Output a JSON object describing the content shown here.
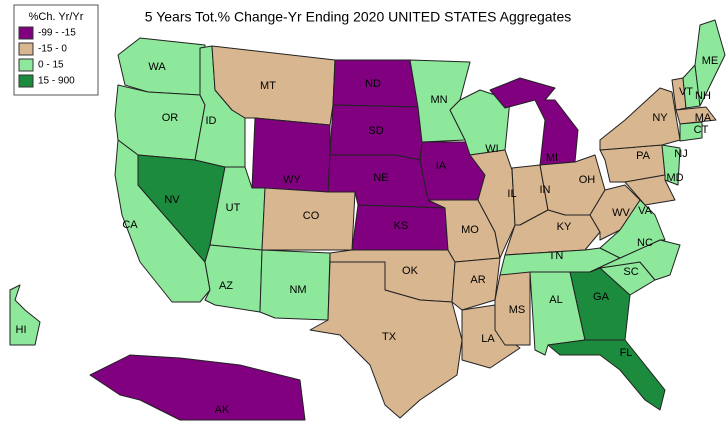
{
  "title": "5 Years Tot.% Change-Yr Ending 2020 UNITED STATES Aggregates",
  "legend": {
    "title": "%Ch. Yr/Yr",
    "items": [
      {
        "label": "-99 - -15",
        "color": "#800080"
      },
      {
        "label": "-15 - 0",
        "color": "#d8b690"
      },
      {
        "label": "0 - 15",
        "color": "#8ee89c"
      },
      {
        "label": "15 - 900",
        "color": "#1d8b3e"
      }
    ]
  },
  "states": [
    {
      "label": "WA",
      "color": "#8ee89c"
    },
    {
      "label": "OR",
      "color": "#8ee89c"
    },
    {
      "label": "CA",
      "color": "#8ee89c"
    },
    {
      "label": "NV",
      "color": "#1d8b3e"
    },
    {
      "label": "ID",
      "color": "#8ee89c"
    },
    {
      "label": "MT",
      "color": "#d8b690"
    },
    {
      "label": "WY",
      "color": "#800080"
    },
    {
      "label": "UT",
      "color": "#8ee89c"
    },
    {
      "label": "CO",
      "color": "#d8b690"
    },
    {
      "label": "AZ",
      "color": "#8ee89c"
    },
    {
      "label": "NM",
      "color": "#8ee89c"
    },
    {
      "label": "ND",
      "color": "#800080"
    },
    {
      "label": "SD",
      "color": "#800080"
    },
    {
      "label": "NE",
      "color": "#800080"
    },
    {
      "label": "KS",
      "color": "#800080"
    },
    {
      "label": "OK",
      "color": "#d8b690"
    },
    {
      "label": "TX",
      "color": "#d8b690"
    },
    {
      "label": "MN",
      "color": "#8ee89c"
    },
    {
      "label": "IA",
      "color": "#800080"
    },
    {
      "label": "MO",
      "color": "#d8b690"
    },
    {
      "label": "AR",
      "color": "#d8b690"
    },
    {
      "label": "LA",
      "color": "#d8b690"
    },
    {
      "label": "WI",
      "color": "#8ee89c"
    },
    {
      "label": "IL",
      "color": "#d8b690"
    },
    {
      "label": "MI",
      "color": "#800080"
    },
    {
      "label": "IN",
      "color": "#d8b690"
    },
    {
      "label": "OH",
      "color": "#d8b690"
    },
    {
      "label": "KY",
      "color": "#d8b690"
    },
    {
      "label": "TN",
      "color": "#8ee89c"
    },
    {
      "label": "MS",
      "color": "#d8b690"
    },
    {
      "label": "AL",
      "color": "#8ee89c"
    },
    {
      "label": "GA",
      "color": "#1d8b3e"
    },
    {
      "label": "FL",
      "color": "#1d8b3e"
    },
    {
      "label": "SC",
      "color": "#8ee89c"
    },
    {
      "label": "NC",
      "color": "#8ee89c"
    },
    {
      "label": "VA",
      "color": "#8ee89c"
    },
    {
      "label": "WV",
      "color": "#d8b690"
    },
    {
      "label": "PA",
      "color": "#d8b690"
    },
    {
      "label": "NY",
      "color": "#d8b690"
    },
    {
      "label": "NJ",
      "color": "#8ee89c"
    },
    {
      "label": "MD",
      "color": "#d8b690"
    },
    {
      "label": "VT",
      "color": "#d8b690"
    },
    {
      "label": "NH",
      "color": "#8ee89c"
    },
    {
      "label": "ME",
      "color": "#8ee89c"
    },
    {
      "label": "MA",
      "color": "#d8b690"
    },
    {
      "label": "CT",
      "color": "#8ee89c"
    },
    {
      "label": "HI",
      "color": "#8ee89c"
    },
    {
      "label": "AK",
      "color": "#800080"
    }
  ]
}
